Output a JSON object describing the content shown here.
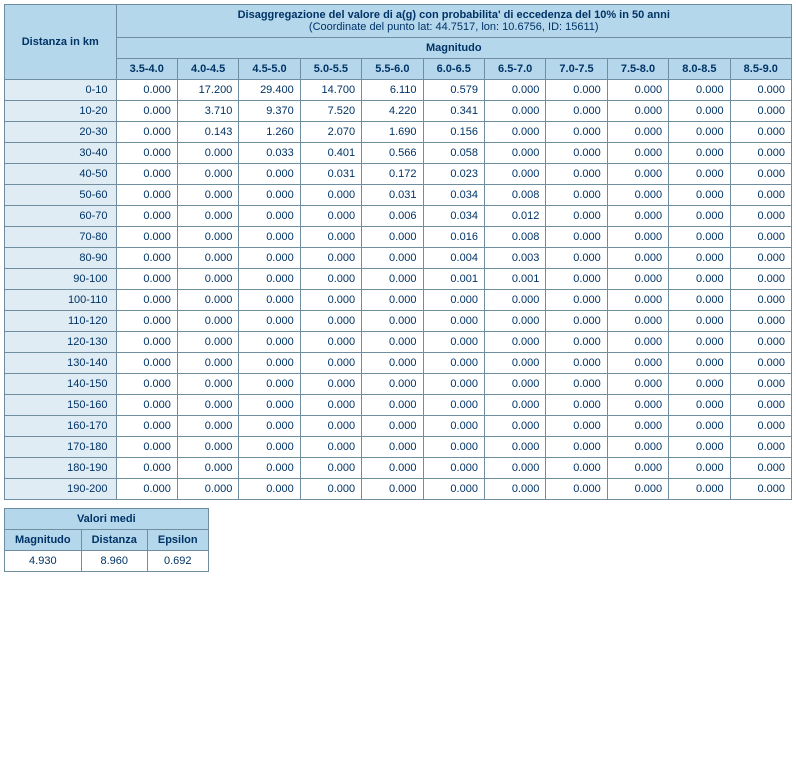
{
  "main": {
    "title": "Disaggregazione del valore di a(g) con probabilita' di eccedenza del 10% in 50 anni",
    "subtitle": "(Coordinate del punto lat: 44.7517, lon: 10.6756, ID: 15611)",
    "row_header": "Distanza in km",
    "col_group": "Magnitudo",
    "magnitudes": [
      "3.5-4.0",
      "4.0-4.5",
      "4.5-5.0",
      "5.0-5.5",
      "5.5-6.0",
      "6.0-6.5",
      "6.5-7.0",
      "7.0-7.5",
      "7.5-8.0",
      "8.0-8.5",
      "8.5-9.0"
    ],
    "distances": [
      "0-10",
      "10-20",
      "20-30",
      "30-40",
      "40-50",
      "50-60",
      "60-70",
      "70-80",
      "80-90",
      "90-100",
      "100-110",
      "110-120",
      "120-130",
      "130-140",
      "140-150",
      "150-160",
      "160-170",
      "170-180",
      "180-190",
      "190-200"
    ],
    "values": [
      [
        "0.000",
        "17.200",
        "29.400",
        "14.700",
        "6.110",
        "0.579",
        "0.000",
        "0.000",
        "0.000",
        "0.000",
        "0.000"
      ],
      [
        "0.000",
        "3.710",
        "9.370",
        "7.520",
        "4.220",
        "0.341",
        "0.000",
        "0.000",
        "0.000",
        "0.000",
        "0.000"
      ],
      [
        "0.000",
        "0.143",
        "1.260",
        "2.070",
        "1.690",
        "0.156",
        "0.000",
        "0.000",
        "0.000",
        "0.000",
        "0.000"
      ],
      [
        "0.000",
        "0.000",
        "0.033",
        "0.401",
        "0.566",
        "0.058",
        "0.000",
        "0.000",
        "0.000",
        "0.000",
        "0.000"
      ],
      [
        "0.000",
        "0.000",
        "0.000",
        "0.031",
        "0.172",
        "0.023",
        "0.000",
        "0.000",
        "0.000",
        "0.000",
        "0.000"
      ],
      [
        "0.000",
        "0.000",
        "0.000",
        "0.000",
        "0.031",
        "0.034",
        "0.008",
        "0.000",
        "0.000",
        "0.000",
        "0.000"
      ],
      [
        "0.000",
        "0.000",
        "0.000",
        "0.000",
        "0.006",
        "0.034",
        "0.012",
        "0.000",
        "0.000",
        "0.000",
        "0.000"
      ],
      [
        "0.000",
        "0.000",
        "0.000",
        "0.000",
        "0.000",
        "0.016",
        "0.008",
        "0.000",
        "0.000",
        "0.000",
        "0.000"
      ],
      [
        "0.000",
        "0.000",
        "0.000",
        "0.000",
        "0.000",
        "0.004",
        "0.003",
        "0.000",
        "0.000",
        "0.000",
        "0.000"
      ],
      [
        "0.000",
        "0.000",
        "0.000",
        "0.000",
        "0.000",
        "0.001",
        "0.001",
        "0.000",
        "0.000",
        "0.000",
        "0.000"
      ],
      [
        "0.000",
        "0.000",
        "0.000",
        "0.000",
        "0.000",
        "0.000",
        "0.000",
        "0.000",
        "0.000",
        "0.000",
        "0.000"
      ],
      [
        "0.000",
        "0.000",
        "0.000",
        "0.000",
        "0.000",
        "0.000",
        "0.000",
        "0.000",
        "0.000",
        "0.000",
        "0.000"
      ],
      [
        "0.000",
        "0.000",
        "0.000",
        "0.000",
        "0.000",
        "0.000",
        "0.000",
        "0.000",
        "0.000",
        "0.000",
        "0.000"
      ],
      [
        "0.000",
        "0.000",
        "0.000",
        "0.000",
        "0.000",
        "0.000",
        "0.000",
        "0.000",
        "0.000",
        "0.000",
        "0.000"
      ],
      [
        "0.000",
        "0.000",
        "0.000",
        "0.000",
        "0.000",
        "0.000",
        "0.000",
        "0.000",
        "0.000",
        "0.000",
        "0.000"
      ],
      [
        "0.000",
        "0.000",
        "0.000",
        "0.000",
        "0.000",
        "0.000",
        "0.000",
        "0.000",
        "0.000",
        "0.000",
        "0.000"
      ],
      [
        "0.000",
        "0.000",
        "0.000",
        "0.000",
        "0.000",
        "0.000",
        "0.000",
        "0.000",
        "0.000",
        "0.000",
        "0.000"
      ],
      [
        "0.000",
        "0.000",
        "0.000",
        "0.000",
        "0.000",
        "0.000",
        "0.000",
        "0.000",
        "0.000",
        "0.000",
        "0.000"
      ],
      [
        "0.000",
        "0.000",
        "0.000",
        "0.000",
        "0.000",
        "0.000",
        "0.000",
        "0.000",
        "0.000",
        "0.000",
        "0.000"
      ],
      [
        "0.000",
        "0.000",
        "0.000",
        "0.000",
        "0.000",
        "0.000",
        "0.000",
        "0.000",
        "0.000",
        "0.000",
        "0.000"
      ]
    ]
  },
  "means": {
    "title": "Valori medi",
    "cols": [
      "Magnitudo",
      "Distanza",
      "Epsilon"
    ],
    "vals": [
      "4.930",
      "8.960",
      "0.692"
    ]
  },
  "style": {
    "header_bg": "#b5d7ec",
    "rowhdr_bg": "#e0ecf4",
    "cell_bg": "#ffffff",
    "border": "#6f8fa0",
    "text": "#003366",
    "font": "Verdana",
    "font_size_pt": 8
  }
}
